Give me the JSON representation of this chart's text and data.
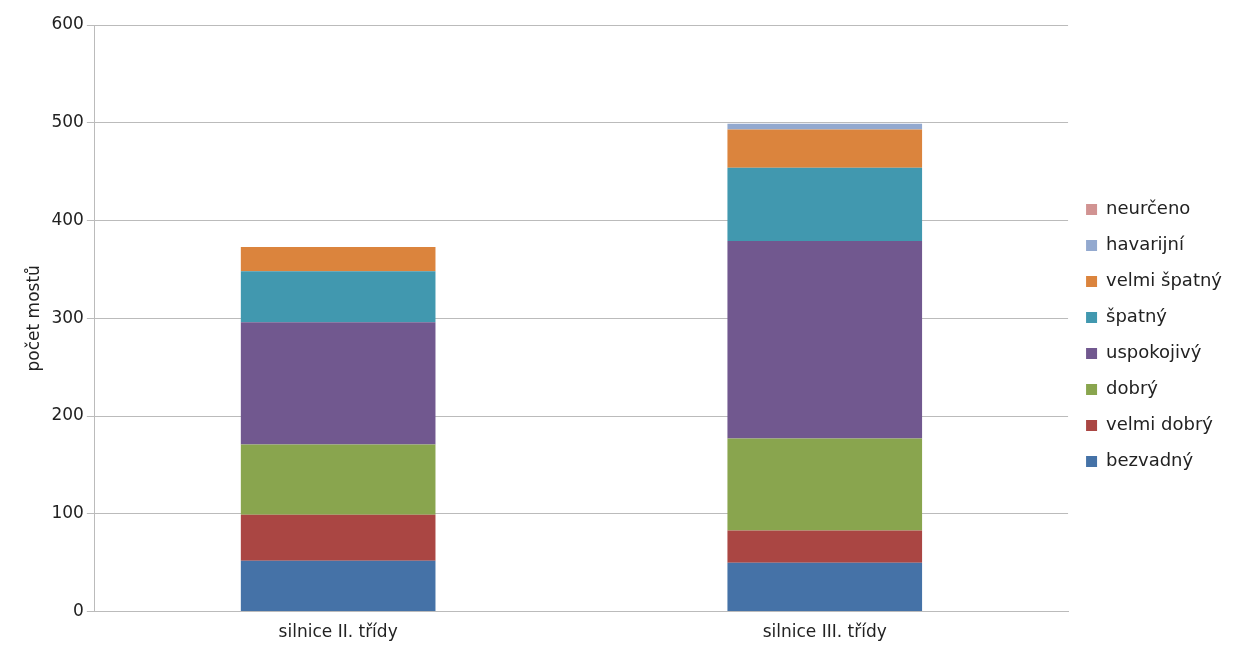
{
  "chart_data": {
    "type": "bar",
    "ylabel": "počet mostů",
    "categories": [
      "silnice II. třídy",
      "silnice III. třídy"
    ],
    "stacked": true,
    "series": [
      {
        "name": "bezvadný",
        "color": "#4572a7",
        "values": [
          52,
          50
        ]
      },
      {
        "name": "velmi dobrý",
        "color": "#aa4643",
        "values": [
          47,
          33
        ]
      },
      {
        "name": "dobrý",
        "color": "#89a54e",
        "values": [
          72,
          94
        ]
      },
      {
        "name": "uspokojivý",
        "color": "#71588f",
        "values": [
          125,
          202
        ]
      },
      {
        "name": "špatný",
        "color": "#4198af",
        "values": [
          52,
          75
        ]
      },
      {
        "name": "velmi špatný",
        "color": "#db843d",
        "values": [
          25,
          39
        ]
      },
      {
        "name": "havarijní",
        "color": "#93a9cf",
        "values": [
          0,
          6
        ]
      },
      {
        "name": "neurčeno",
        "color": "#d19392",
        "values": [
          0,
          0
        ]
      }
    ],
    "ylim": [
      0,
      600
    ],
    "yticks": [
      0,
      100,
      200,
      300,
      400,
      500,
      600
    ],
    "grid": "y",
    "legend": "right"
  }
}
